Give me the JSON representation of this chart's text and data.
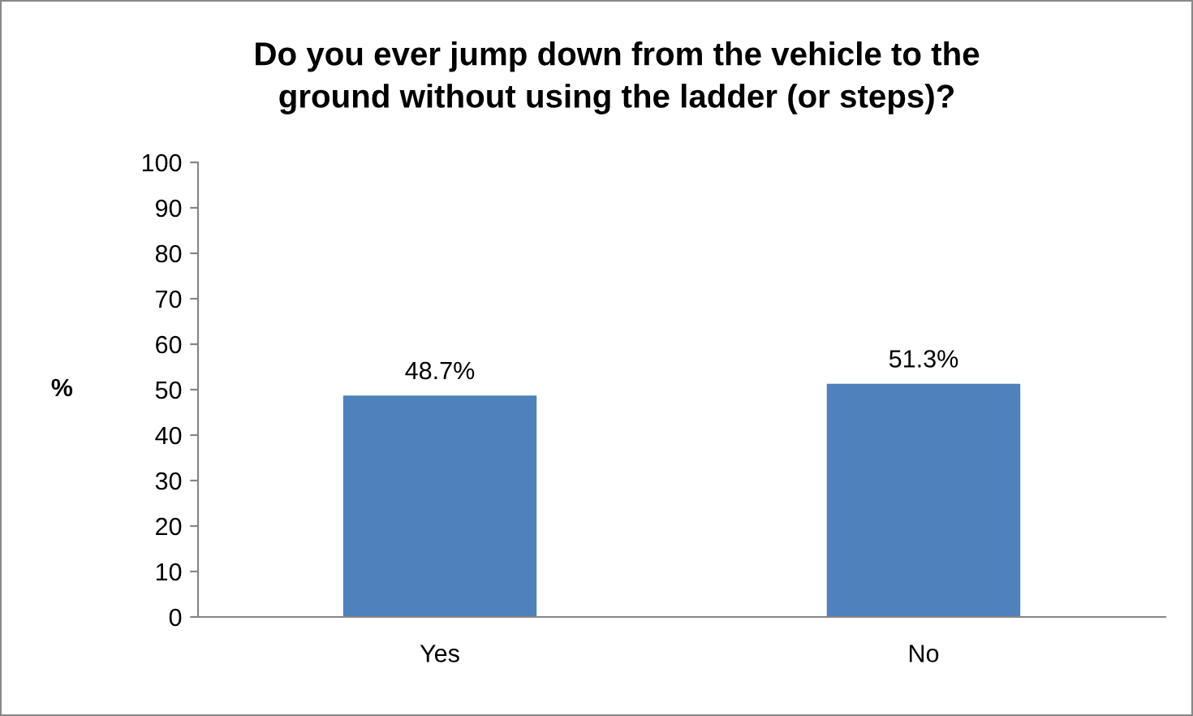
{
  "chart_data": {
    "type": "bar",
    "title": "Do you ever jump down from the vehicle to the\nground without using the ladder (or steps)?",
    "ylabel": "%",
    "categories": [
      "Yes",
      "No"
    ],
    "values": [
      48.7,
      51.3
    ],
    "value_labels": [
      "48.7%",
      "51.3%"
    ],
    "color": "#4f81bd",
    "ylim": [
      0,
      100
    ],
    "yticks": [
      0,
      10,
      20,
      30,
      40,
      50,
      60,
      70,
      80,
      90,
      100
    ],
    "grid": false
  }
}
